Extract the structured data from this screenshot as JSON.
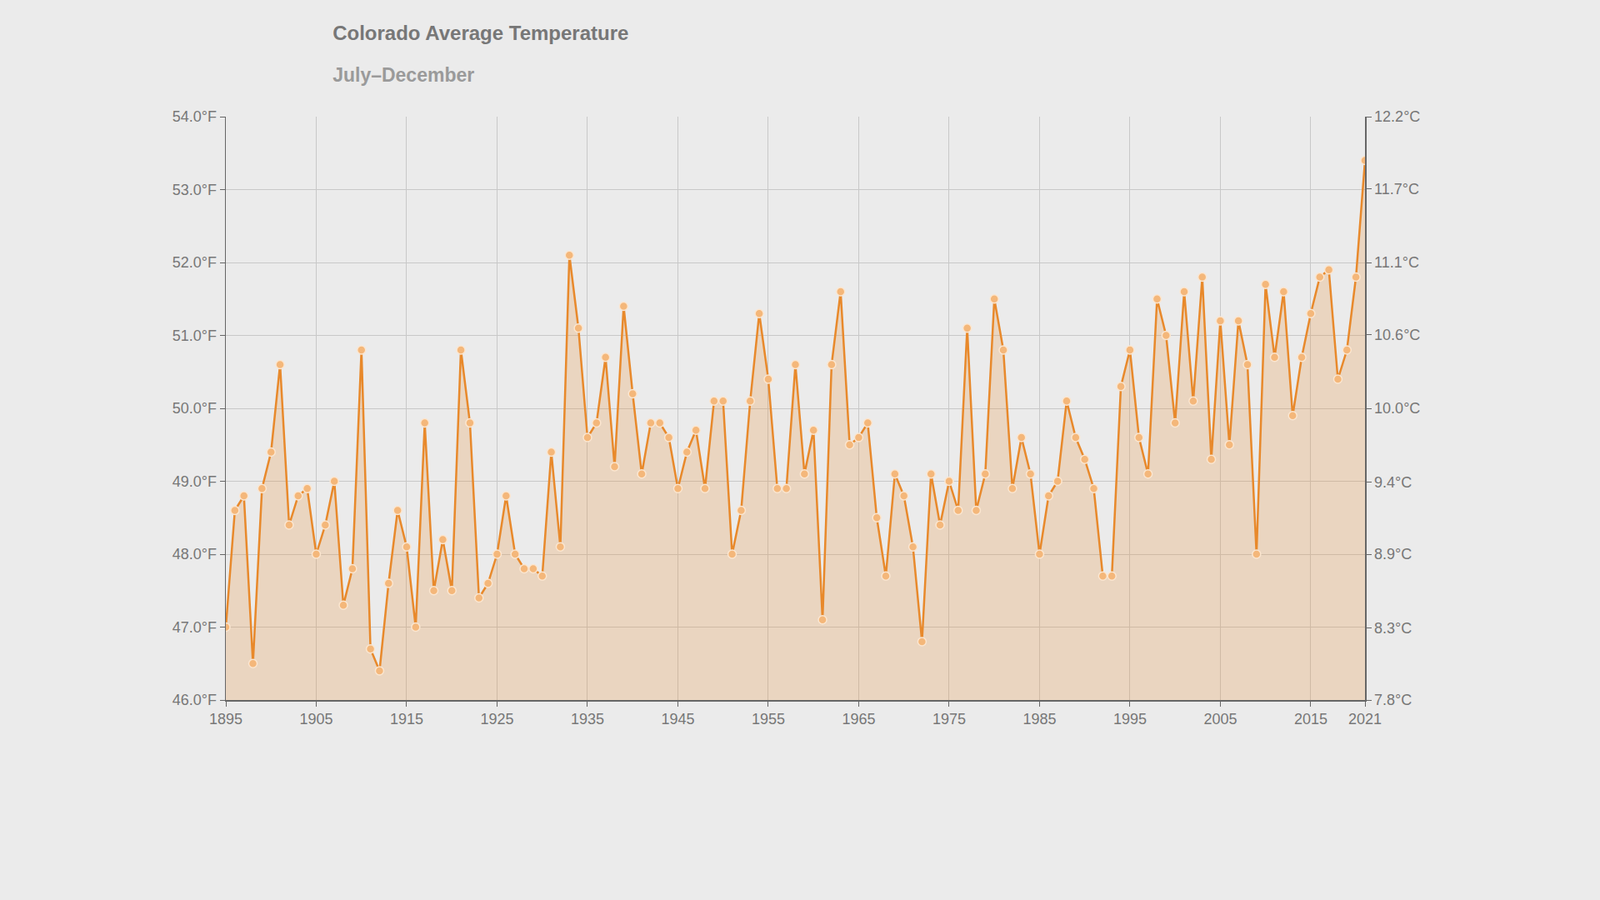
{
  "chart_data": {
    "type": "line",
    "title": "Colorado Average Temperature",
    "subtitle": "July–December",
    "x": [
      1895,
      1896,
      1897,
      1898,
      1899,
      1900,
      1901,
      1902,
      1903,
      1904,
      1905,
      1906,
      1907,
      1908,
      1909,
      1910,
      1911,
      1912,
      1913,
      1914,
      1915,
      1916,
      1917,
      1918,
      1919,
      1920,
      1921,
      1922,
      1923,
      1924,
      1925,
      1926,
      1927,
      1928,
      1929,
      1930,
      1931,
      1932,
      1933,
      1934,
      1935,
      1936,
      1937,
      1938,
      1939,
      1940,
      1941,
      1942,
      1943,
      1944,
      1945,
      1946,
      1947,
      1948,
      1949,
      1950,
      1951,
      1952,
      1953,
      1954,
      1955,
      1956,
      1957,
      1958,
      1959,
      1960,
      1961,
      1962,
      1963,
      1964,
      1965,
      1966,
      1967,
      1968,
      1969,
      1970,
      1971,
      1972,
      1973,
      1974,
      1975,
      1976,
      1977,
      1978,
      1979,
      1980,
      1981,
      1982,
      1983,
      1984,
      1985,
      1986,
      1987,
      1988,
      1989,
      1990,
      1991,
      1992,
      1993,
      1994,
      1995,
      1996,
      1997,
      1998,
      1999,
      2000,
      2001,
      2002,
      2003,
      2004,
      2005,
      2006,
      2007,
      2008,
      2009,
      2010,
      2011,
      2012,
      2013,
      2014,
      2015,
      2016,
      2017,
      2018,
      2019,
      2020,
      2021
    ],
    "values": [
      47.0,
      48.6,
      48.8,
      46.5,
      48.9,
      49.4,
      50.6,
      48.4,
      48.8,
      48.9,
      48.0,
      48.4,
      49.0,
      47.3,
      47.8,
      50.8,
      46.7,
      46.4,
      47.6,
      48.6,
      48.1,
      47.0,
      49.8,
      47.5,
      48.2,
      47.5,
      50.8,
      49.8,
      47.4,
      47.6,
      48.0,
      48.8,
      48.0,
      47.8,
      47.8,
      47.7,
      49.4,
      48.1,
      52.1,
      51.1,
      49.6,
      49.8,
      50.7,
      49.2,
      51.4,
      50.2,
      49.1,
      49.8,
      49.8,
      49.6,
      48.9,
      49.4,
      49.7,
      48.9,
      50.1,
      50.1,
      48.0,
      48.6,
      50.1,
      51.3,
      50.4,
      48.9,
      48.9,
      50.6,
      49.1,
      49.7,
      47.1,
      50.6,
      51.6,
      49.5,
      49.6,
      49.8,
      48.5,
      47.7,
      49.1,
      48.8,
      48.1,
      46.8,
      49.1,
      48.4,
      49.0,
      48.6,
      51.1,
      48.6,
      49.1,
      51.5,
      50.8,
      48.9,
      49.6,
      49.1,
      48.0,
      48.8,
      49.0,
      50.1,
      49.6,
      49.3,
      48.9,
      47.7,
      47.7,
      50.3,
      50.8,
      49.6,
      49.1,
      51.5,
      51.0,
      49.8,
      51.6,
      50.1,
      51.8,
      49.3,
      51.2,
      49.5,
      51.2,
      50.6,
      48.0,
      51.7,
      50.7,
      51.6,
      49.9,
      50.7,
      51.3,
      51.8,
      51.9,
      50.4,
      50.8,
      51.8,
      53.4
    ],
    "color": "#e8892b",
    "marker": "circle",
    "xlim": [
      1895,
      2021
    ],
    "xticks": [
      1895,
      1905,
      1915,
      1925,
      1935,
      1945,
      1955,
      1965,
      1975,
      1985,
      1995,
      2005,
      2015,
      2021
    ],
    "ylim": [
      46,
      54
    ],
    "yticks": [
      {
        "value": 46,
        "label": "46.0°F"
      },
      {
        "value": 47,
        "label": "47.0°F"
      },
      {
        "value": 48,
        "label": "48.0°F"
      },
      {
        "value": 49,
        "label": "49.0°F"
      },
      {
        "value": 50,
        "label": "50.0°F"
      },
      {
        "value": 51,
        "label": "51.0°F"
      },
      {
        "value": 52,
        "label": "52.0°F"
      },
      {
        "value": 53,
        "label": "53.0°F"
      },
      {
        "value": 54,
        "label": "54.0°F"
      }
    ],
    "y2lim": [
      7.78,
      12.22
    ],
    "y2ticks": [
      {
        "value": 7.78,
        "label": "7.8°C"
      },
      {
        "value": 8.33,
        "label": "8.3°C"
      },
      {
        "value": 8.89,
        "label": "8.9°C"
      },
      {
        "value": 9.44,
        "label": "9.4°C"
      },
      {
        "value": 10.0,
        "label": "10.0°C"
      },
      {
        "value": 10.56,
        "label": "10.6°C"
      },
      {
        "value": 11.11,
        "label": "11.1°C"
      },
      {
        "value": 11.67,
        "label": "11.7°C"
      },
      {
        "value": 12.22,
        "label": "12.2°C"
      }
    ],
    "grid": true
  }
}
